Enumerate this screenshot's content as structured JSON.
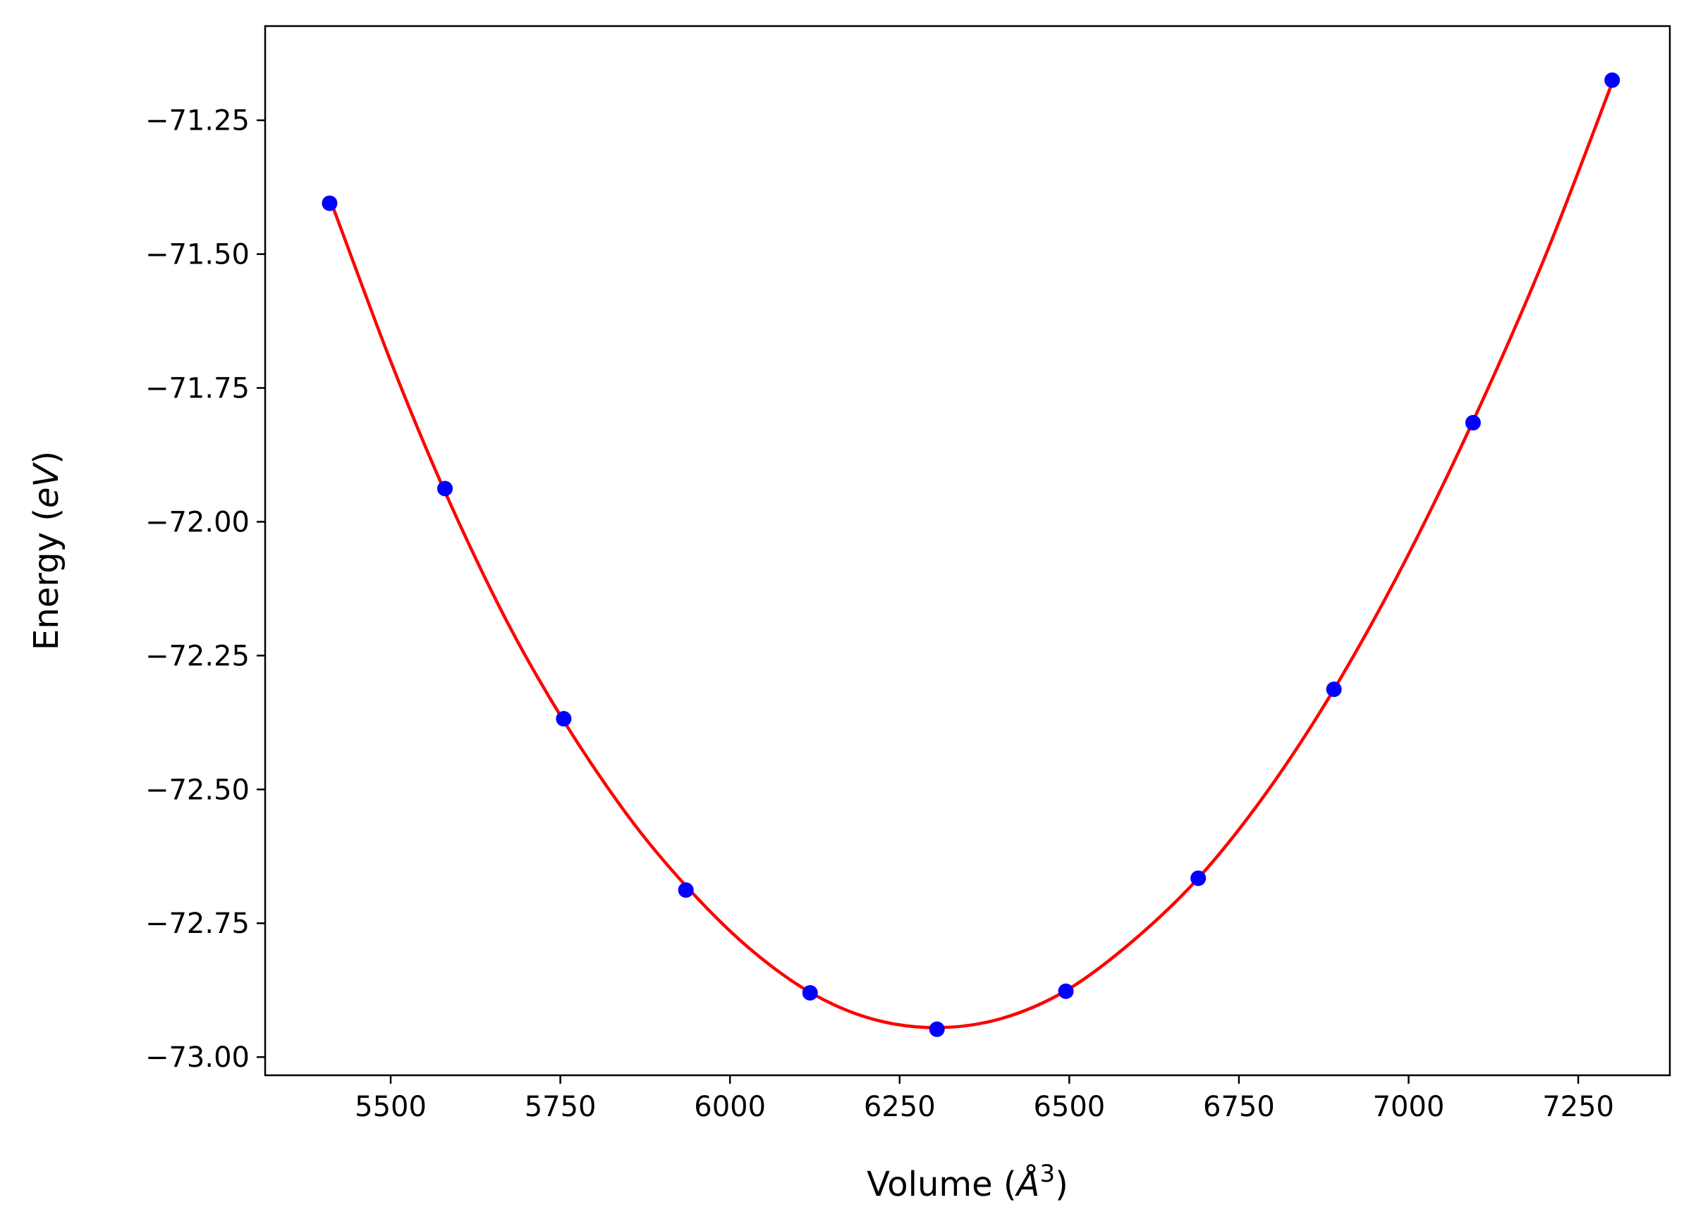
{
  "chart_data": {
    "type": "line",
    "xlabel": "Volume ($\\AA^3$)",
    "ylabel": "Energy ($eV$)",
    "xlabel_parts": {
      "prefix": "Volume (",
      "symbol": "Å",
      "exponent": "3",
      "suffix": ")"
    },
    "ylabel_parts": {
      "prefix": "Energy (",
      "italic": "eV",
      "suffix": ")"
    },
    "xlim": [
      5315,
      7385
    ],
    "ylim": [
      -73.034,
      -71.074
    ],
    "x_ticks": [
      5500,
      5750,
      6000,
      6250,
      6500,
      6750,
      7000,
      7250
    ],
    "x_tick_labels": [
      "5500",
      "5750",
      "6000",
      "6250",
      "6500",
      "6750",
      "7000",
      "7250"
    ],
    "y_ticks": [
      -71.25,
      -71.5,
      -71.75,
      -72.0,
      -72.25,
      -72.5,
      -72.75,
      -73.0
    ],
    "y_tick_labels": [
      "−71.25",
      "−71.50",
      "−71.75",
      "−72.00",
      "−72.25",
      "−72.50",
      "−72.75",
      "−73.00"
    ],
    "grid": false,
    "series": [
      {
        "kind": "scatter",
        "color": "#0000ff",
        "points": [
          [
            5410,
            -71.405
          ],
          [
            5580,
            -71.938
          ],
          [
            5755,
            -72.368
          ],
          [
            5935,
            -72.688
          ],
          [
            6118,
            -72.88
          ],
          [
            6305,
            -72.948
          ],
          [
            6495,
            -72.877
          ],
          [
            6690,
            -72.666
          ],
          [
            6890,
            -72.313
          ],
          [
            7095,
            -71.815
          ],
          [
            7300,
            -71.175
          ]
        ]
      },
      {
        "kind": "fit",
        "color": "#ff0000",
        "x": [
          5410,
          5500,
          5580,
          5670,
          5755,
          5850,
          5935,
          6025,
          6118,
          6210,
          6305,
          6400,
          6495,
          6590,
          6690,
          6790,
          6890,
          6990,
          7095,
          7200,
          7300
        ],
        "y": [
          -71.395,
          -71.7,
          -71.944,
          -72.183,
          -72.372,
          -72.55,
          -72.68,
          -72.793,
          -72.879,
          -72.929,
          -72.945,
          -72.928,
          -72.876,
          -72.787,
          -72.666,
          -72.507,
          -72.313,
          -72.085,
          -71.812,
          -71.508,
          -71.18
        ]
      }
    ]
  }
}
